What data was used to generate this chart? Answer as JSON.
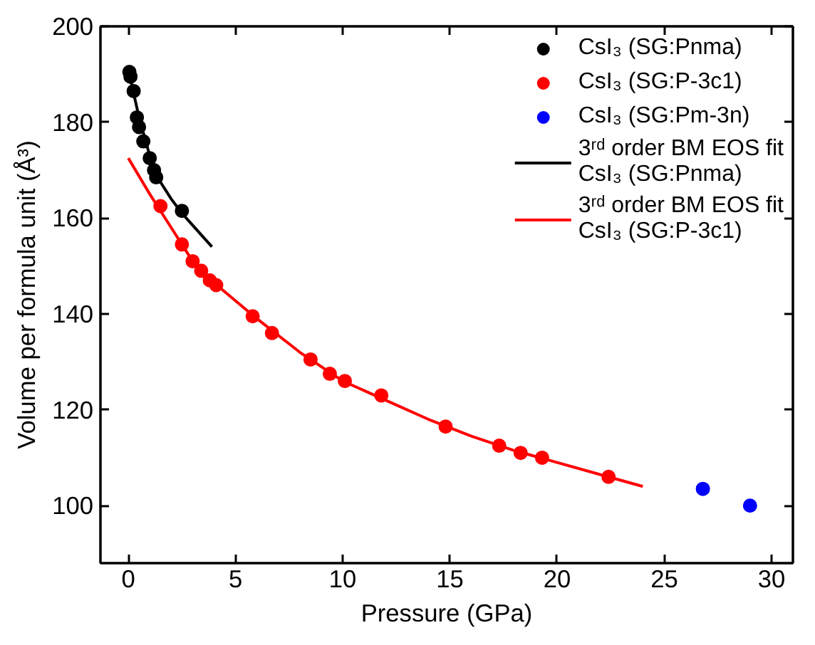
{
  "chart_data": {
    "type": "scatter",
    "xlabel": "Pressure (GPa)",
    "ylabel": "Volume per formula unit (Å³)",
    "xlim": [
      -1.3,
      31
    ],
    "ylim": [
      88,
      200
    ],
    "xticks": [
      0,
      5,
      10,
      15,
      20,
      25,
      30
    ],
    "yticks": [
      100,
      120,
      140,
      160,
      180,
      200
    ],
    "grid": false,
    "legend": "top right",
    "marker": "circle",
    "series": [
      {
        "name": "CsI₃ (SG:Pnma)",
        "color": "#000000",
        "x": [
          0.05,
          0.1,
          0.25,
          0.4,
          0.5,
          0.7,
          1.0,
          1.2,
          1.3,
          2.5
        ],
        "values": [
          190.5,
          189.5,
          186.5,
          181,
          179,
          176,
          172.5,
          170,
          168.5,
          161.5
        ]
      },
      {
        "name": "CsI₃ (SG:P-3c1)",
        "color": "#ff0000",
        "x": [
          1.5,
          2.5,
          3.0,
          3.4,
          3.8,
          4.1,
          5.8,
          6.7,
          8.5,
          9.4,
          10.1,
          11.8,
          14.8,
          17.3,
          18.3,
          19.3,
          22.4
        ],
        "values": [
          162.5,
          154.5,
          151,
          149,
          147,
          146,
          139.5,
          136,
          130.5,
          127.5,
          126,
          123,
          116.5,
          112.5,
          111,
          110,
          106
        ]
      },
      {
        "name": "CsI₃ (SG:Pm-3n)",
        "color": "#0000ff",
        "x": [
          26.8,
          29.0
        ],
        "values": [
          103.5,
          100
        ]
      },
      {
        "name": "3ʳᵈ order BM EOS fit\nCsI₃ (SG:Pnma)",
        "type": "line",
        "marker": "none",
        "color": "#000000",
        "x": [
          0,
          0.5,
          1,
          1.5,
          2,
          2.5,
          3,
          3.9
        ],
        "values": [
          191,
          181,
          173,
          167.5,
          164,
          161,
          158.5,
          154
        ]
      },
      {
        "name": "3ʳᵈ order BM EOS fit\nCsI₃ (SG:P-3c1)",
        "type": "line",
        "marker": "none",
        "color": "#ff0000",
        "x": [
          0,
          1,
          2,
          3,
          4,
          6,
          8,
          10,
          12,
          14,
          16,
          18,
          20,
          22,
          24
        ],
        "values": [
          172.5,
          165,
          158,
          151,
          146.5,
          139,
          132,
          126,
          122,
          118,
          114.5,
          111.5,
          109,
          106.5,
          104
        ]
      }
    ]
  }
}
